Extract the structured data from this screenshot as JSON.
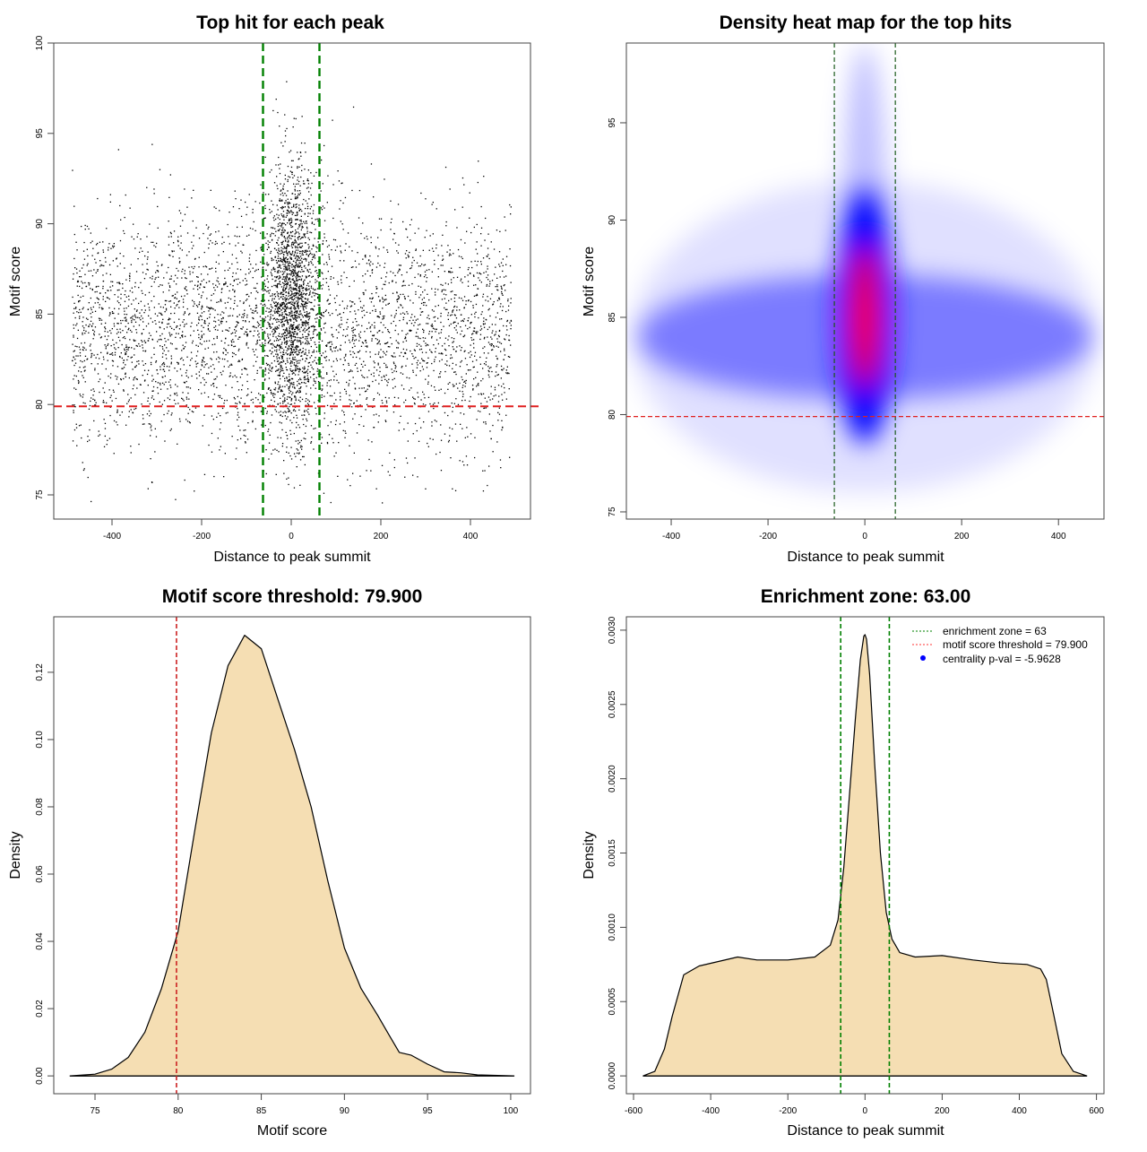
{
  "chart_data": [
    {
      "type": "scatter",
      "title": "Top hit for each peak",
      "xlabel": "Distance to peak summit",
      "ylabel": "Motif score",
      "xlim": [
        -530,
        534
      ],
      "ylim": [
        73.66,
        100.0
      ],
      "xticks": [
        -400,
        -200,
        0,
        200,
        400
      ],
      "yticks": [
        75,
        80,
        85,
        90,
        95,
        100
      ],
      "point_groups": [
        {
          "name": "background",
          "n": 3800,
          "x_range": [
            -490,
            490
          ],
          "y_mean": 84,
          "y_sd": 3.3
        },
        {
          "name": "central",
          "n": 1700,
          "x_mean": 0,
          "x_sd": 28,
          "y_mean": 86,
          "y_sd": 3.6
        }
      ],
      "vlines": {
        "values": [
          -63,
          63
        ],
        "color": "#008000"
      },
      "hline": {
        "value": 79.9,
        "color": "#e02020"
      }
    },
    {
      "type": "heatmap",
      "title": "Density heat map for the top hits",
      "xlabel": "Distance to peak summit",
      "ylabel": "Motif score",
      "xlim": [
        -492.6,
        494
      ],
      "ylim": [
        74.63,
        99.1
      ],
      "xticks": [
        -400,
        -200,
        0,
        200,
        400
      ],
      "yticks": [
        75,
        80,
        85,
        90,
        95
      ],
      "density_regions": [
        {
          "x": 0,
          "y": 84,
          "x_halfwidth": 480,
          "y_halfwidth": 8,
          "color": "#0000ff",
          "intensity": 0.12
        },
        {
          "x": 0,
          "y": 84,
          "x_halfwidth": 470,
          "y_halfwidth": 3.2,
          "color": "#0000ff",
          "intensity": 0.45
        },
        {
          "x": 0,
          "y": 90,
          "x_halfwidth": 45,
          "y_halfwidth": 9,
          "color": "#0000ff",
          "intensity": 0.25
        },
        {
          "x": 0,
          "y": 85,
          "x_halfwidth": 62,
          "y_halfwidth": 6.5,
          "color": "#0000ff",
          "intensity": 1.0
        },
        {
          "x": 0,
          "y": 85,
          "x_halfwidth": 30,
          "y_halfwidth": 3.6,
          "color": "#ff0000",
          "intensity": 0.9
        },
        {
          "x": 0,
          "y": 84.8,
          "x_halfwidth": 16,
          "y_halfwidth": 1.8,
          "color": "#ff0000",
          "intensity": 1.0
        }
      ],
      "vlines": {
        "values": [
          -63,
          63
        ],
        "color": "#1a5a1a"
      },
      "hline": {
        "value": 79.9,
        "color": "#e02020"
      }
    },
    {
      "type": "area",
      "title": "Motif score threshold: 79.900",
      "xlabel": "Motif score",
      "ylabel": "Density",
      "xlim": [
        72.52,
        101.19
      ],
      "ylim": [
        -0.0053,
        0.1365
      ],
      "xticks": [
        75,
        80,
        85,
        90,
        95,
        100
      ],
      "yticks": [
        0.0,
        0.02,
        0.04,
        0.06,
        0.08,
        0.1,
        0.12
      ],
      "ytick_labels": [
        "0.00",
        "0.02",
        "0.04",
        "0.06",
        "0.08",
        "0.10",
        "0.12"
      ],
      "fill": "#f5deb3",
      "x": [
        73.5,
        75,
        76,
        77,
        78,
        79,
        80,
        81,
        82,
        83,
        84,
        85,
        86,
        87,
        88,
        89,
        90,
        91,
        92,
        92.7,
        93.3,
        94,
        95,
        96,
        97,
        98,
        100.2
      ],
      "y": [
        0,
        0.0005,
        0.002,
        0.0055,
        0.013,
        0.026,
        0.043,
        0.073,
        0.102,
        0.122,
        0.131,
        0.127,
        0.112,
        0.097,
        0.08,
        0.058,
        0.038,
        0.026,
        0.018,
        0.012,
        0.007,
        0.0062,
        0.0035,
        0.0012,
        0.0009,
        0.0003,
        0
      ],
      "vlines": {
        "values": [
          79.9
        ],
        "color": "#cc2222"
      }
    },
    {
      "type": "area",
      "title": "Enrichment zone: 63.00",
      "xlabel": "Distance to peak summit",
      "ylabel": "Density",
      "xlim": [
        -618.6,
        619.5
      ],
      "ylim": [
        -0.00012,
        0.00309
      ],
      "xticks": [
        -600,
        -400,
        -200,
        0,
        200,
        400,
        600
      ],
      "yticks": [
        0,
        0.0005,
        0.001,
        0.0015,
        0.002,
        0.0025,
        0.003
      ],
      "ytick_labels": [
        "0.0000",
        "0.0005",
        "0.0010",
        "0.0015",
        "0.0020",
        "0.0025",
        "0.0030"
      ],
      "fill": "#f5deb3",
      "x": [
        -575,
        -545,
        -520,
        -500,
        -470,
        -430,
        -380,
        -330,
        -280,
        -200,
        -130,
        -90,
        -70,
        -55,
        -40,
        -25,
        -12,
        -3,
        0,
        4,
        12,
        25,
        40,
        55,
        70,
        90,
        130,
        200,
        280,
        350,
        420,
        455,
        470,
        490,
        510,
        540,
        575
      ],
      "y": [
        0,
        3e-05,
        0.00018,
        0.0004,
        0.00068,
        0.00074,
        0.00077,
        0.0008,
        0.00078,
        0.00078,
        0.0008,
        0.00088,
        0.00105,
        0.0014,
        0.0019,
        0.0024,
        0.0028,
        0.00296,
        0.00297,
        0.00294,
        0.0027,
        0.0021,
        0.0015,
        0.0011,
        0.00092,
        0.00083,
        0.0008,
        0.00081,
        0.00078,
        0.00076,
        0.00075,
        0.00072,
        0.00065,
        0.0004,
        0.00015,
        3e-05,
        0
      ],
      "vlines": {
        "values": [
          -63,
          63
        ],
        "color": "#008000"
      },
      "legend": {
        "placement": "top-right",
        "entries": [
          {
            "label": "enrichment zone = 63",
            "color": "#008000",
            "style": "dotted"
          },
          {
            "label": "motif score threshold = 79.900",
            "color": "#ff3333",
            "style": "dotted"
          },
          {
            "label": "centrality p-val = -5.9628",
            "color": "#0000ff",
            "style": "point"
          }
        ]
      }
    }
  ]
}
